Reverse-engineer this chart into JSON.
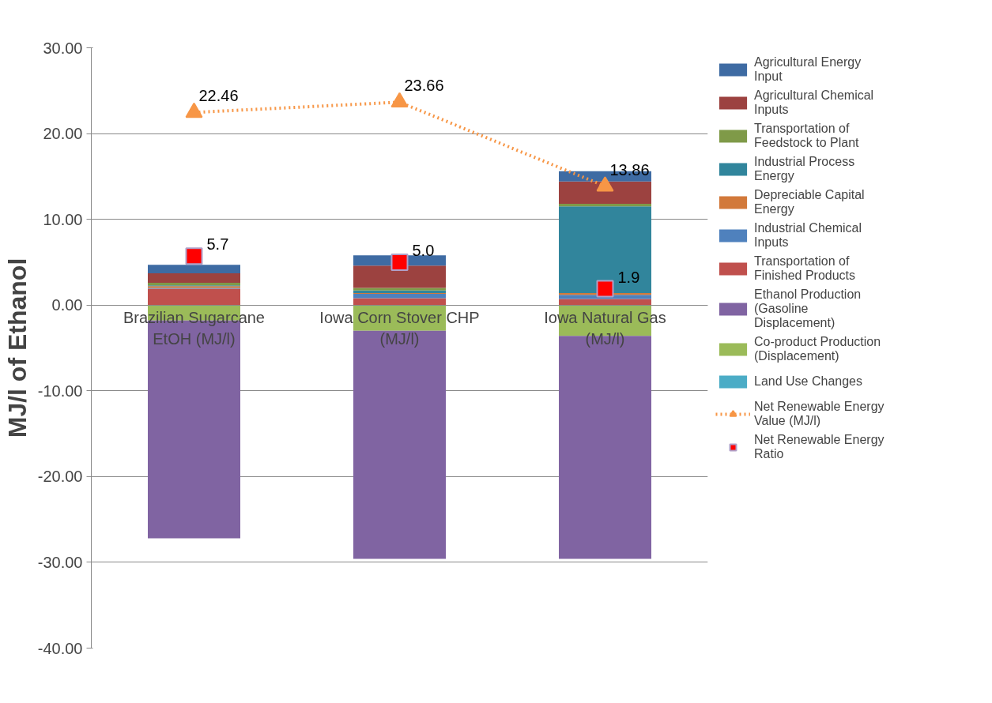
{
  "chart_data": {
    "type": "bar",
    "stacked": true,
    "ylabel": "MJ/l of Ethanol",
    "categories": [
      "Brazilian Sugarcane EtOH (MJ/l)",
      "Iowa Corn Stover CHP (MJ/l)",
      "Iowa Natural Gas (MJ/l)"
    ],
    "ylim": [
      -40,
      30
    ],
    "yticks": [
      {
        "value": -40,
        "label": "-40.00"
      },
      {
        "value": -30,
        "label": "-30.00"
      },
      {
        "value": -20,
        "label": "-20.00"
      },
      {
        "value": -10,
        "label": "-10.00"
      },
      {
        "value": 0,
        "label": "0.00"
      },
      {
        "value": 10,
        "label": "10.00"
      },
      {
        "value": 20,
        "label": "20.00"
      },
      {
        "value": 30,
        "label": "30.00"
      }
    ],
    "grid": "y",
    "legend": "right",
    "series": [
      {
        "name": "Land Use Changes",
        "color": "#4bacc6",
        "values": [
          0,
          0,
          0
        ]
      },
      {
        "name": "Co-product Production (Displacement)",
        "color": "#9bbb59",
        "values": [
          -1.8,
          -3.0,
          -3.6
        ]
      },
      {
        "name": "Ethanol Production (Gasoline Displacement)",
        "color": "#8064a2",
        "values": [
          -25.4,
          -26.6,
          -26.0
        ]
      },
      {
        "name": "Transportation of Finished Products",
        "color": "#c0504d",
        "values": [
          1.9,
          0.8,
          0.7
        ]
      },
      {
        "name": "Industrial Chemical Inputs",
        "color": "#4f81bd",
        "values": [
          0.1,
          0.5,
          0.5
        ]
      },
      {
        "name": "Depreciable Capital Energy",
        "color": "#d2793a",
        "values": [
          0.2,
          0.1,
          0.2
        ]
      },
      {
        "name": "Industrial Process Energy",
        "color": "#31859c",
        "values": [
          0.1,
          0.3,
          10.1
        ]
      },
      {
        "name": "Transportation of Feedstock to Plant",
        "color": "#7f9a48",
        "values": [
          0.3,
          0.3,
          0.3
        ]
      },
      {
        "name": "Agricultural Chemical Inputs",
        "color": "#9c4240",
        "values": [
          1.1,
          2.6,
          2.6
        ]
      },
      {
        "name": "Agricultural Energy Input",
        "color": "#3e6ba3",
        "values": [
          1.0,
          1.2,
          1.2
        ]
      },
      {
        "name": "Net Renewable Energy Value (MJ/l)",
        "type": "line",
        "color": "#f79646",
        "marker": "triangle",
        "line_style": "dotted",
        "values": [
          22.46,
          23.66,
          13.86
        ],
        "value_labels": [
          "22.46",
          "23.66",
          "13.86"
        ]
      },
      {
        "name": "Net Renewable Energy Ratio",
        "type": "scatter",
        "color": "#ff0000",
        "marker": "square",
        "values": [
          5.7,
          5.0,
          1.9
        ],
        "value_labels": [
          "5.7",
          "5.0",
          "1.9"
        ]
      }
    ]
  }
}
